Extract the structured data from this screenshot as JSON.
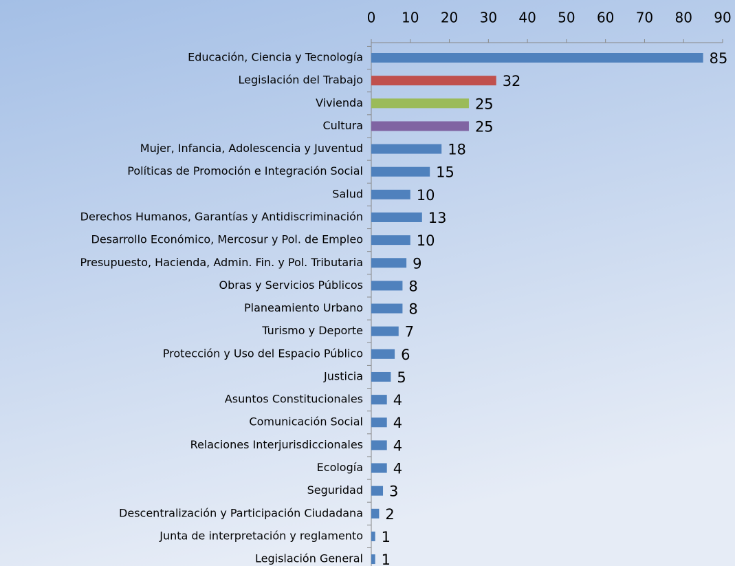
{
  "chart_data": {
    "type": "bar",
    "orientation": "horizontal",
    "categories": [
      "Educación, Ciencia y Tecnología",
      "Legislación del Trabajo",
      "Vivienda",
      "Cultura",
      "Mujer, Infancia, Adolescencia y Juventud",
      "Políticas de Promoción e Integración Social",
      "Salud",
      "Derechos Humanos, Garantías y Antidiscriminación",
      "Desarrollo Económico, Mercosur y Pol. de Empleo",
      "Presupuesto, Hacienda, Admin. Fin. y Pol. Tributaria",
      "Obras y Servicios Públicos",
      "Planeamiento Urbano",
      "Turismo y Deporte",
      "Protección y Uso del Espacio Público",
      "Justicia",
      "Asuntos Constitucionales",
      "Comunicación Social",
      "Relaciones Interjurisdiccionales",
      "Ecología",
      "Seguridad",
      "Descentralización y Participación Ciudadana",
      "Junta de interpretación y reglamento",
      "Legislación General"
    ],
    "values": [
      85,
      32,
      25,
      25,
      18,
      15,
      10,
      13,
      10,
      9,
      8,
      8,
      7,
      6,
      5,
      4,
      4,
      4,
      4,
      3,
      2,
      1,
      1
    ],
    "colors": [
      "#4f81bd",
      "#c0504d",
      "#9bbb59",
      "#8064a2",
      "#4f81bd",
      "#4f81bd",
      "#4f81bd",
      "#4f81bd",
      "#4f81bd",
      "#4f81bd",
      "#4f81bd",
      "#4f81bd",
      "#4f81bd",
      "#4f81bd",
      "#4f81bd",
      "#4f81bd",
      "#4f81bd",
      "#4f81bd",
      "#4f81bd",
      "#4f81bd",
      "#4f81bd",
      "#4f81bd",
      "#4f81bd"
    ],
    "xlim": [
      0,
      90
    ],
    "xticks": [
      0,
      10,
      20,
      30,
      40,
      50,
      60,
      70,
      80,
      90
    ],
    "axis_position": "top"
  }
}
